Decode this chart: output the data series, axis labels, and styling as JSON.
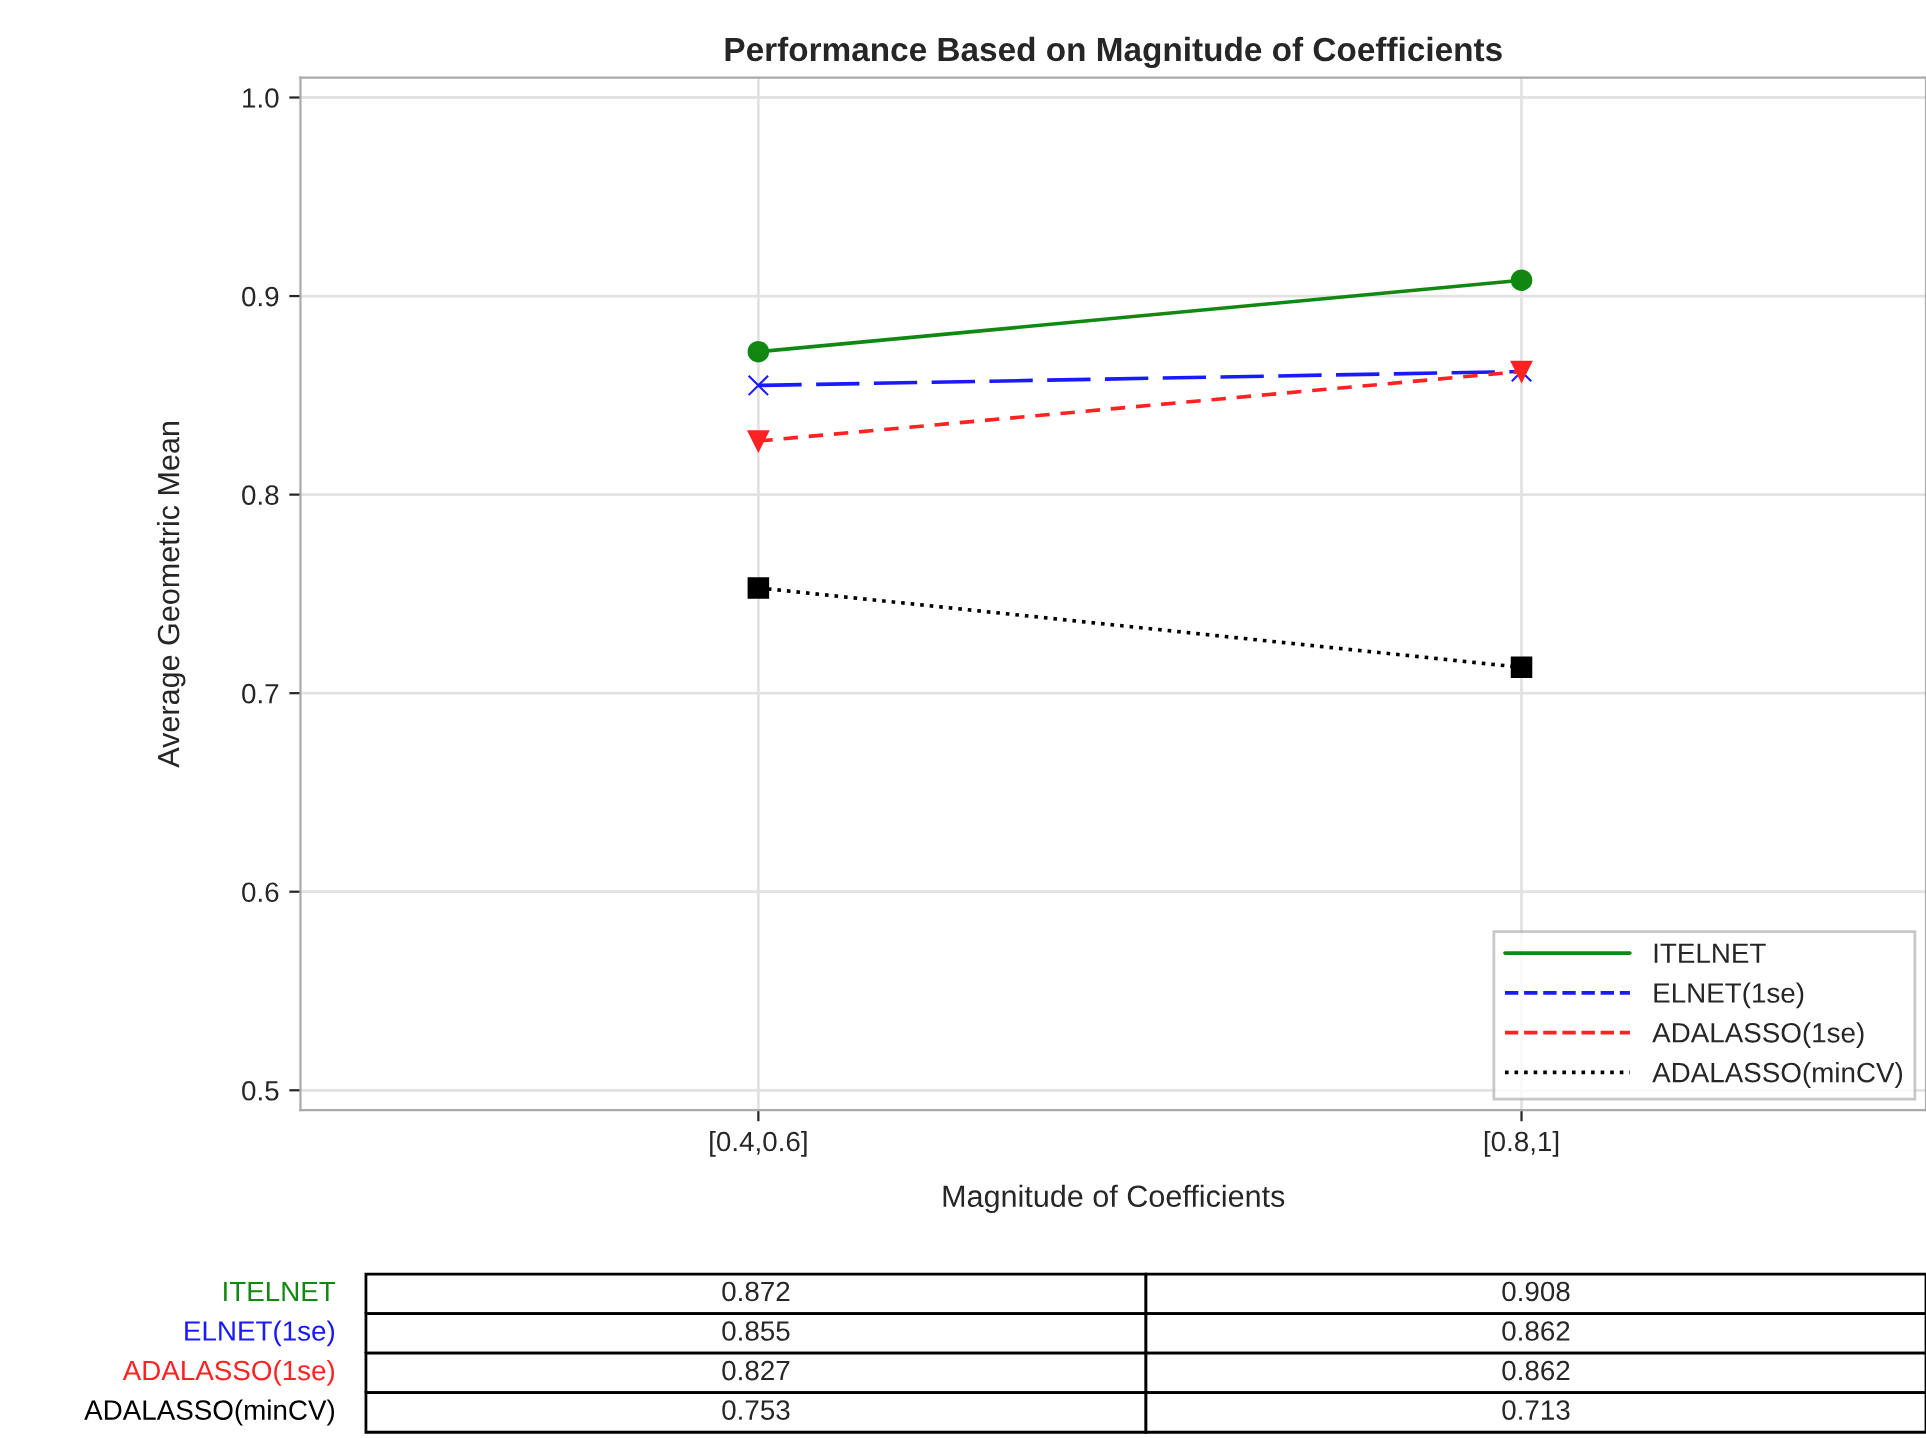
{
  "chart_data": {
    "type": "line",
    "title": "Performance Based on Magnitude of Coefficients",
    "xlabel": "Magnitude of Coefficients",
    "ylabel": "Average Geometric Mean",
    "categories": [
      "[0.4,0.6]",
      "[0.8,1]"
    ],
    "series": [
      {
        "name": "ITELNET",
        "color": "#118811",
        "values": [
          0.872,
          0.908
        ],
        "marker": "circle",
        "line_style": "solid"
      },
      {
        "name": "ELNET(1se)",
        "color": "#1a1aff",
        "values": [
          0.855,
          0.862
        ],
        "marker": "cross",
        "line_style": "dashed"
      },
      {
        "name": "ADALASSO(1se)",
        "color": "#ff2222",
        "values": [
          0.827,
          0.862
        ],
        "marker": "triangle",
        "line_style": "dashed"
      },
      {
        "name": "ADALASSO(minCV)",
        "color": "#000000",
        "values": [
          0.753,
          0.713
        ],
        "marker": "square",
        "line_style": "dotted"
      }
    ],
    "ylim": [
      0.49,
      1.01
    ],
    "yticks": [
      {
        "value": 0.5,
        "label": "0.5"
      },
      {
        "value": 0.6,
        "label": "0.6"
      },
      {
        "value": 0.7,
        "label": "0.7"
      },
      {
        "value": 0.8,
        "label": "0.8"
      },
      {
        "value": 0.9,
        "label": "0.9"
      },
      {
        "value": 1.0,
        "label": "1.0"
      }
    ],
    "grid": true,
    "legend": "bottom right",
    "data_labels": true
  }
}
